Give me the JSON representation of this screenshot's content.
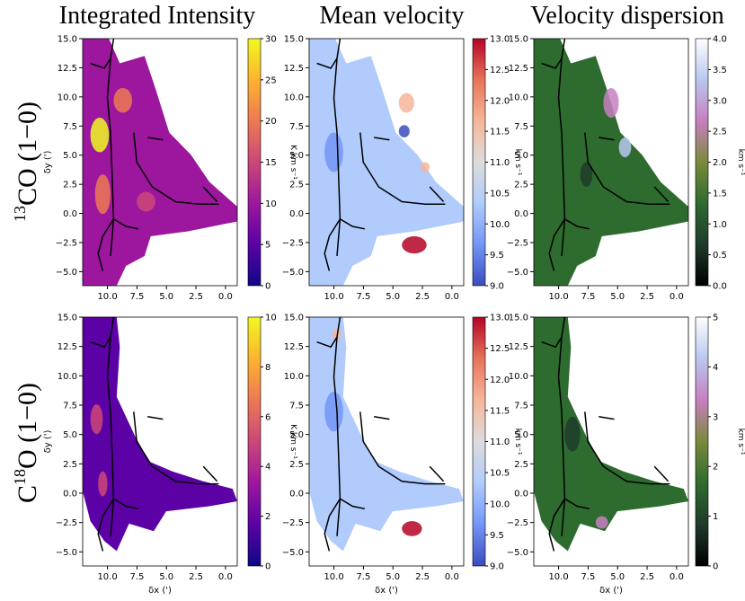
{
  "column_titles": [
    "Integrated Intensity",
    "Mean velocity",
    "Velocity dispersion"
  ],
  "row_titles": [
    {
      "sup": "13",
      "label": "CO (1−0)"
    },
    {
      "sup": "18",
      "label": "O (1−0)",
      "prefix": "C"
    }
  ],
  "colormaps": {
    "intensity": [
      "#0d0887",
      "#5c01a6",
      "#9c179e",
      "#cc4778",
      "#ed7953",
      "#fdb42f",
      "#f0f921"
    ],
    "velocity": [
      "#3b4cc0",
      "#7396f5",
      "#b0cbfc",
      "#dddcdc",
      "#f6b69a",
      "#e7745b",
      "#b40426"
    ],
    "dispersion": [
      "#000000",
      "#1f3b2a",
      "#2e6b2f",
      "#7a8a3a",
      "#c77fc0",
      "#b8c7ef",
      "#ffffff"
    ]
  },
  "chart_data": [
    {
      "type": "heatmap",
      "panel": "13CO integrated intensity",
      "title": "Integrated Intensity",
      "xlabel": "",
      "ylabel": "δy (')",
      "xlim": [
        12.1,
        -1.0
      ],
      "ylim": [
        -6.2,
        15.0
      ],
      "xticks": [
        "10.0",
        "7.5",
        "5.0",
        "2.5",
        "0.0"
      ],
      "yticks": [
        "15.0",
        "12.5",
        "10.0",
        "7.5",
        "5.0",
        "2.5",
        "0.0",
        "−2.5",
        "−5.0"
      ],
      "colorbar": {
        "label": "K km s⁻¹",
        "range": [
          0,
          30
        ],
        "ticks": [
          "30",
          "25",
          "20",
          "15",
          "10",
          "5",
          "0"
        ]
      }
    },
    {
      "type": "heatmap",
      "panel": "13CO mean velocity",
      "title": "Mean velocity",
      "xlabel": "",
      "ylabel": "",
      "xlim": [
        12.1,
        -1.0
      ],
      "ylim": [
        -6.2,
        15.0
      ],
      "xticks": [
        "10.0",
        "7.5",
        "5.0",
        "2.5",
        "0.0"
      ],
      "yticks": [
        "15.0",
        "12.5",
        "10.0",
        "7.5",
        "5.0",
        "2.5",
        "0.0",
        "−2.5",
        "−5.0"
      ],
      "colorbar": {
        "label": "km s⁻¹",
        "range": [
          9.0,
          13.0
        ],
        "ticks": [
          "13.0",
          "12.5",
          "12.0",
          "11.5",
          "11.0",
          "10.5",
          "10.0",
          "9.5",
          "9.0"
        ]
      }
    },
    {
      "type": "heatmap",
      "panel": "13CO velocity dispersion",
      "title": "Velocity dispersion",
      "xlabel": "",
      "ylabel": "",
      "xlim": [
        12.1,
        -1.0
      ],
      "ylim": [
        -6.2,
        15.0
      ],
      "xticks": [
        "10.0",
        "7.5",
        "5.0",
        "2.5",
        "0.0"
      ],
      "yticks": [
        "15.0",
        "12.5",
        "10.0",
        "7.5",
        "5.0",
        "2.5",
        "0.0",
        "−2.5",
        "−5.0"
      ],
      "colorbar": {
        "label": "km s⁻¹",
        "range": [
          0.0,
          4.0
        ],
        "ticks": [
          "4.0",
          "3.5",
          "3.0",
          "2.5",
          "2.0",
          "1.5",
          "1.0",
          "0.5",
          "0.0"
        ]
      }
    },
    {
      "type": "heatmap",
      "panel": "C18O integrated intensity",
      "title": "",
      "xlabel": "δx (')",
      "ylabel": "δy (')",
      "xlim": [
        12.1,
        -1.0
      ],
      "ylim": [
        -6.2,
        15.0
      ],
      "xticks": [
        "10.0",
        "7.5",
        "5.0",
        "2.5",
        "0.0"
      ],
      "yticks": [
        "15.0",
        "12.5",
        "10.0",
        "7.5",
        "5.0",
        "2.5",
        "0.0",
        "−2.5",
        "−5.0"
      ],
      "colorbar": {
        "label": "K km s⁻¹",
        "range": [
          0,
          10
        ],
        "ticks": [
          "10",
          "8",
          "6",
          "4",
          "2",
          "0"
        ]
      }
    },
    {
      "type": "heatmap",
      "panel": "C18O mean velocity",
      "title": "",
      "xlabel": "δx (')",
      "ylabel": "",
      "xlim": [
        12.1,
        -1.0
      ],
      "ylim": [
        -6.2,
        15.0
      ],
      "xticks": [
        "10.0",
        "7.5",
        "5.0",
        "2.5",
        "0.0"
      ],
      "yticks": [
        "15.0",
        "12.5",
        "10.0",
        "7.5",
        "5.0",
        "2.5",
        "0.0",
        "−2.5",
        "−5.0"
      ],
      "colorbar": {
        "label": "km s⁻¹",
        "range": [
          9.0,
          13.0
        ],
        "ticks": [
          "13.0",
          "12.5",
          "12.0",
          "11.5",
          "11.0",
          "10.5",
          "10.0",
          "9.5",
          "9.0"
        ]
      }
    },
    {
      "type": "heatmap",
      "panel": "C18O velocity dispersion",
      "title": "",
      "xlabel": "δx (')",
      "ylabel": "",
      "xlim": [
        12.1,
        -1.0
      ],
      "ylim": [
        -6.2,
        15.0
      ],
      "xticks": [
        "10.0",
        "7.5",
        "5.0",
        "2.5",
        "0.0"
      ],
      "yticks": [
        "15.0",
        "12.5",
        "10.0",
        "7.5",
        "5.0",
        "2.5",
        "0.0",
        "−2.5",
        "−5.0"
      ],
      "colorbar": {
        "label": "km s⁻¹",
        "range": [
          0,
          5
        ],
        "ticks": [
          "5",
          "4",
          "3",
          "2",
          "1",
          "0"
        ]
      }
    }
  ]
}
